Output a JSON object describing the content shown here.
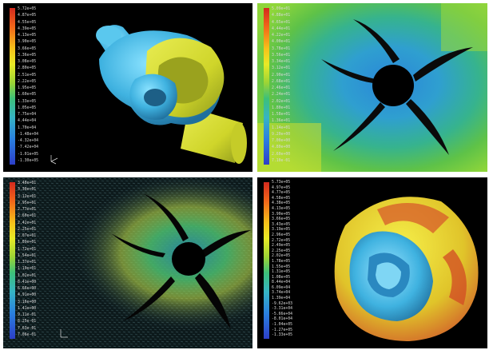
{
  "panels": {
    "pressure_volute": {
      "legend": [
        "5.72e+05",
        "4.87e+05",
        "4.55e+05",
        "4.39e+05",
        "4.13e+05",
        "3.90e+05",
        "3.66e+05",
        "3.36e+05",
        "3.08e+05",
        "2.80e+05",
        "2.51e+05",
        "2.22e+05",
        "1.95e+05",
        "1.60e+05",
        "1.33e+05",
        "1.05e+05",
        "7.75e+04",
        "4.44e+04",
        "1.70e+04",
        "-1.48e+04",
        "-4.32e+04",
        "-7.42e+04",
        "-1.01e+05",
        "-1.30e+05"
      ]
    },
    "velocity_contour": {
      "legend": [
        "5.09e+01",
        "4.88e+01",
        "4.65e+01",
        "4.44e+01",
        "4.22e+01",
        "4.00e+01",
        "3.78e+01",
        "3.56e+01",
        "3.34e+01",
        "3.12e+01",
        "2.90e+01",
        "2.68e+01",
        "2.46e+01",
        "2.24e+01",
        "2.02e+01",
        "1.80e+01",
        "1.58e+01",
        "1.36e+01",
        "1.14e+01",
        "9.20e+00",
        "7.00e+00",
        "4.80e+00",
        "2.60e+00",
        "7.10e-01"
      ]
    },
    "velocity_vectors": {
      "legend": [
        "3.48e+01",
        "3.30e+01",
        "3.12e+01",
        "2.95e+01",
        "2.77e+01",
        "2.60e+01",
        "2.42e+01",
        "2.25e+01",
        "2.07e+01",
        "1.89e+01",
        "1.72e+01",
        "1.54e+01",
        "1.37e+01",
        "1.19e+01",
        "1.02e+01",
        "8.41e+00",
        "6.66e+00",
        "4.91e+00",
        "3.16e+00",
        "1.41e+00",
        "9.11e-01",
        "8.25e-01",
        "7.63e-01",
        "7.06e-01"
      ]
    },
    "pressure_impeller": {
      "legend": [
        "5.73e+05",
        "4.97e+05",
        "4.77e+05",
        "4.58e+05",
        "4.38e+05",
        "4.13e+05",
        "3.90e+05",
        "3.66e+05",
        "3.43e+05",
        "3.19e+05",
        "2.96e+05",
        "2.72e+05",
        "2.49e+05",
        "2.25e+05",
        "2.02e+05",
        "1.78e+05",
        "1.55e+05",
        "1.31e+05",
        "1.08e+05",
        "8.44e+04",
        "6.09e+04",
        "3.74e+04",
        "1.39e+04",
        "-9.62e+03",
        "-3.31e+04",
        "-5.66e+04",
        "-8.01e+04",
        "-1.04e+05",
        "-1.27e+05",
        "-1.33e+05"
      ]
    }
  },
  "colors": {
    "cyan": "#3fb2e0",
    "yellow": "#d8dc2a",
    "green": "#58c24a",
    "blade": "#0a0a0a"
  }
}
